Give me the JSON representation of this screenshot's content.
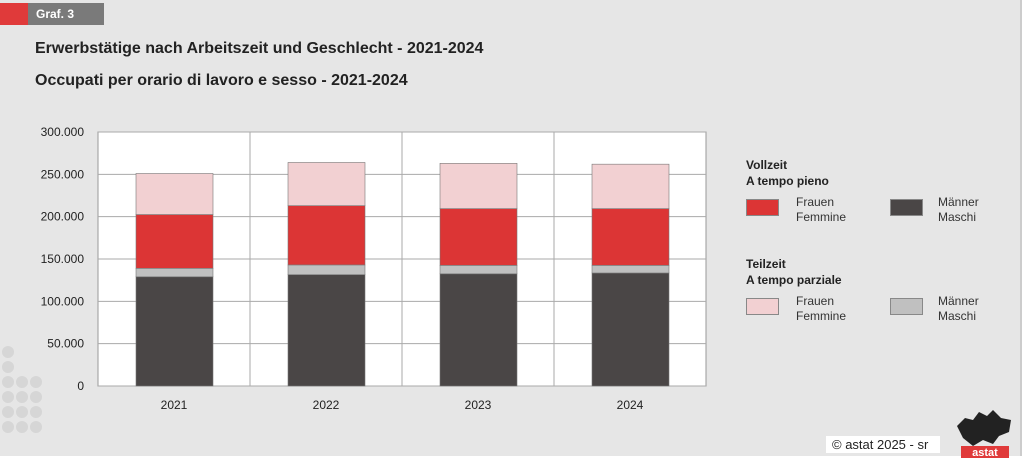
{
  "badge": "Graf. 3",
  "title_de": "Erwerbstätige nach Arbeitszeit und Geschlecht - 2021-2024",
  "title_it": "Occupati per orario di lavoro e sesso - 2021-2024",
  "copyright": "© astat 2025 - sr",
  "logo_text": "astat",
  "chart_data": {
    "type": "bar",
    "stacked": true,
    "categories": [
      "2021",
      "2022",
      "2023",
      "2024"
    ],
    "ylim": [
      0,
      300000
    ],
    "yticks": [
      0,
      50000,
      100000,
      150000,
      200000,
      250000,
      300000
    ],
    "ytick_labels": [
      "0",
      "50.000",
      "100.000",
      "150.000",
      "200.000",
      "250.000",
      "300.000"
    ],
    "grid": true,
    "legend_placement": "right",
    "legend_groups": [
      {
        "title": "Vollzeit\nA tempo pieno"
      },
      {
        "title": "Teilzeit\nA tempo parziale"
      }
    ],
    "series": [
      {
        "name": "Männer Maschi (Vollzeit)",
        "label": "Männer\nMaschi",
        "group": 0,
        "color": "#4a4646",
        "values": [
          129000,
          131500,
          132500,
          133500
        ]
      },
      {
        "name": "Männer Maschi (Teilzeit)",
        "label": "Männer\nMaschi",
        "group": 1,
        "color": "#c0c0c0",
        "values": [
          10000,
          11500,
          10000,
          9000
        ]
      },
      {
        "name": "Frauen Femmine (Vollzeit)",
        "label": "Frauen\nFemmine",
        "group": 0,
        "color": "#dc3535",
        "values": [
          63500,
          70000,
          67000,
          67000
        ]
      },
      {
        "name": "Frauen Femmine (Teilzeit)",
        "label": "Frauen\nFemmine",
        "group": 1,
        "color": "#f2d0d2",
        "values": [
          48500,
          51000,
          53500,
          52500
        ]
      }
    ]
  }
}
